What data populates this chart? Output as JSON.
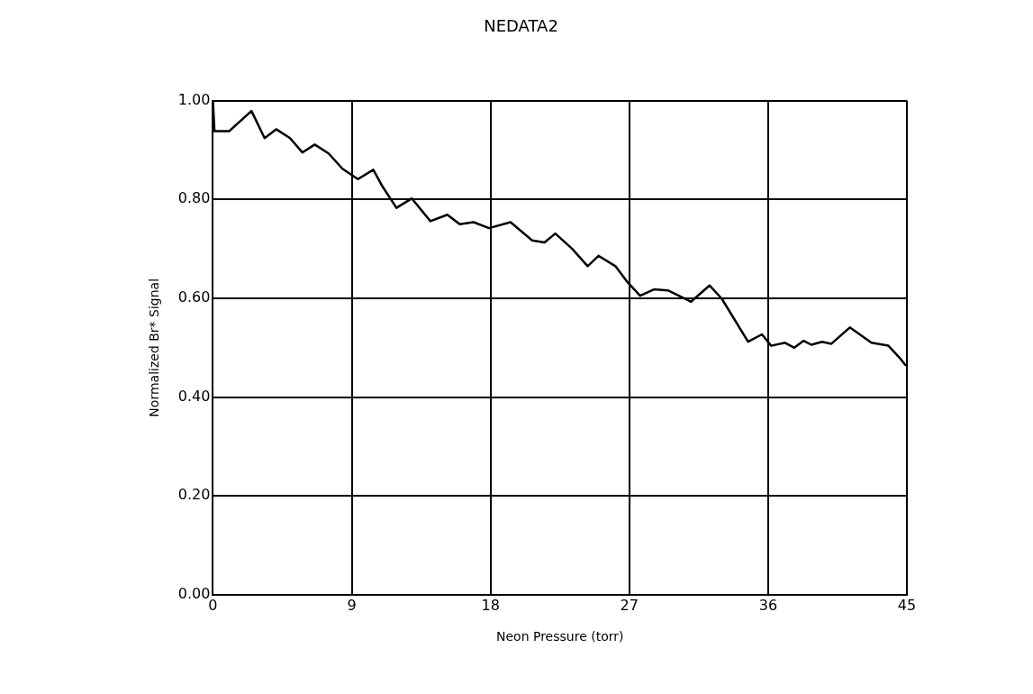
{
  "chart_data": {
    "type": "line",
    "title": "NEDATA2",
    "xlabel": "Neon Pressure (torr)",
    "ylabel": "Normalized Br* Signal",
    "xlim": [
      0,
      45
    ],
    "xticks": [
      0,
      9,
      18,
      27,
      36,
      45
    ],
    "ylim": [
      0,
      1
    ],
    "yticks": [
      {
        "value": 0,
        "label": "0.00"
      },
      {
        "value": 0.2,
        "label": "0.20"
      },
      {
        "value": 0.4,
        "label": "0.40"
      },
      {
        "value": 0.6,
        "label": "0.60"
      },
      {
        "value": 0.8,
        "label": "0.80"
      },
      {
        "value": 1,
        "label": "1.00"
      }
    ],
    "grid": true,
    "legend": false,
    "marker": "none",
    "line_style": "solid",
    "series": [
      {
        "color": "#000000",
        "x": [
          0,
          0.1,
          1.05,
          2.5,
          3.35,
          4.1,
          5.0,
          5.8,
          6.6,
          7.5,
          8.4,
          9.4,
          10.4,
          11.0,
          11.9,
          12.9,
          14.1,
          15.2,
          16.0,
          16.9,
          17.9,
          19.3,
          20.7,
          21.5,
          22.2,
          23.3,
          24.3,
          25.0,
          26.1,
          26.9,
          27.7,
          28.6,
          29.5,
          31.0,
          32.2,
          33.0,
          34.7,
          35.6,
          36.2,
          37.1,
          37.7,
          38.3,
          38.8,
          39.5,
          40.1,
          41.3,
          42.7,
          43.8,
          44.6,
          44.9
        ],
        "values": [
          1.0,
          0.938,
          0.938,
          0.979,
          0.924,
          0.942,
          0.924,
          0.895,
          0.911,
          0.893,
          0.862,
          0.841,
          0.86,
          0.826,
          0.783,
          0.802,
          0.756,
          0.769,
          0.75,
          0.754,
          0.742,
          0.754,
          0.717,
          0.713,
          0.731,
          0.7,
          0.665,
          0.686,
          0.665,
          0.632,
          0.605,
          0.618,
          0.616,
          0.593,
          0.626,
          0.599,
          0.512,
          0.527,
          0.504,
          0.51,
          0.5,
          0.514,
          0.506,
          0.512,
          0.508,
          0.541,
          0.51,
          0.504,
          0.477,
          0.465
        ]
      }
    ]
  }
}
